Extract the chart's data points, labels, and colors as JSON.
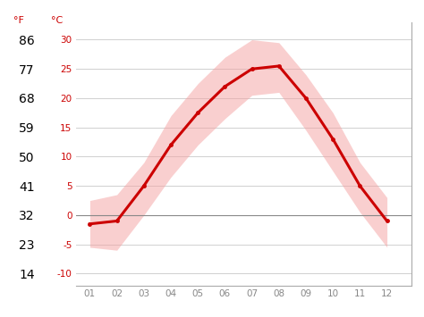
{
  "months": [
    1,
    2,
    3,
    4,
    5,
    6,
    7,
    8,
    9,
    10,
    11,
    12
  ],
  "mean_temp_c": [
    -1.5,
    -1.0,
    5.0,
    12.0,
    17.5,
    22.0,
    25.0,
    25.5,
    20.0,
    13.0,
    5.0,
    -1.0
  ],
  "max_temp_c": [
    2.5,
    3.5,
    9.0,
    17.0,
    22.5,
    27.0,
    30.0,
    29.5,
    24.0,
    17.5,
    9.0,
    3.0
  ],
  "min_temp_c": [
    -5.5,
    -6.0,
    0.0,
    6.5,
    12.0,
    16.5,
    20.5,
    21.0,
    14.5,
    7.5,
    0.5,
    -5.5
  ],
  "ylabel_f": [
    "14",
    "23",
    "32",
    "41",
    "50",
    "59",
    "68",
    "77",
    "86"
  ],
  "ylabel_c": [
    "-10",
    "-5",
    "0",
    "5",
    "10",
    "15",
    "20",
    "25",
    "30"
  ],
  "yticks_c": [
    -10,
    -5,
    0,
    5,
    10,
    15,
    20,
    25,
    30
  ],
  "ylim_c": [
    -12,
    33
  ],
  "xlim": [
    0.5,
    12.9
  ],
  "xtick_labels": [
    "01",
    "02",
    "03",
    "04",
    "05",
    "06",
    "07",
    "08",
    "09",
    "10",
    "11",
    "12"
  ],
  "line_color": "#cc0000",
  "band_color": "#f4a0a0",
  "zero_line_color": "#888888",
  "grid_color": "#d0d0d0",
  "axis_label_color": "#cc0000",
  "tick_label_color": "#888888",
  "title_f": "°F",
  "title_c": "°C",
  "bg_color": "#ffffff",
  "marker": "o",
  "marker_size": 3.5,
  "line_width": 2.2,
  "band_alpha": 0.5
}
